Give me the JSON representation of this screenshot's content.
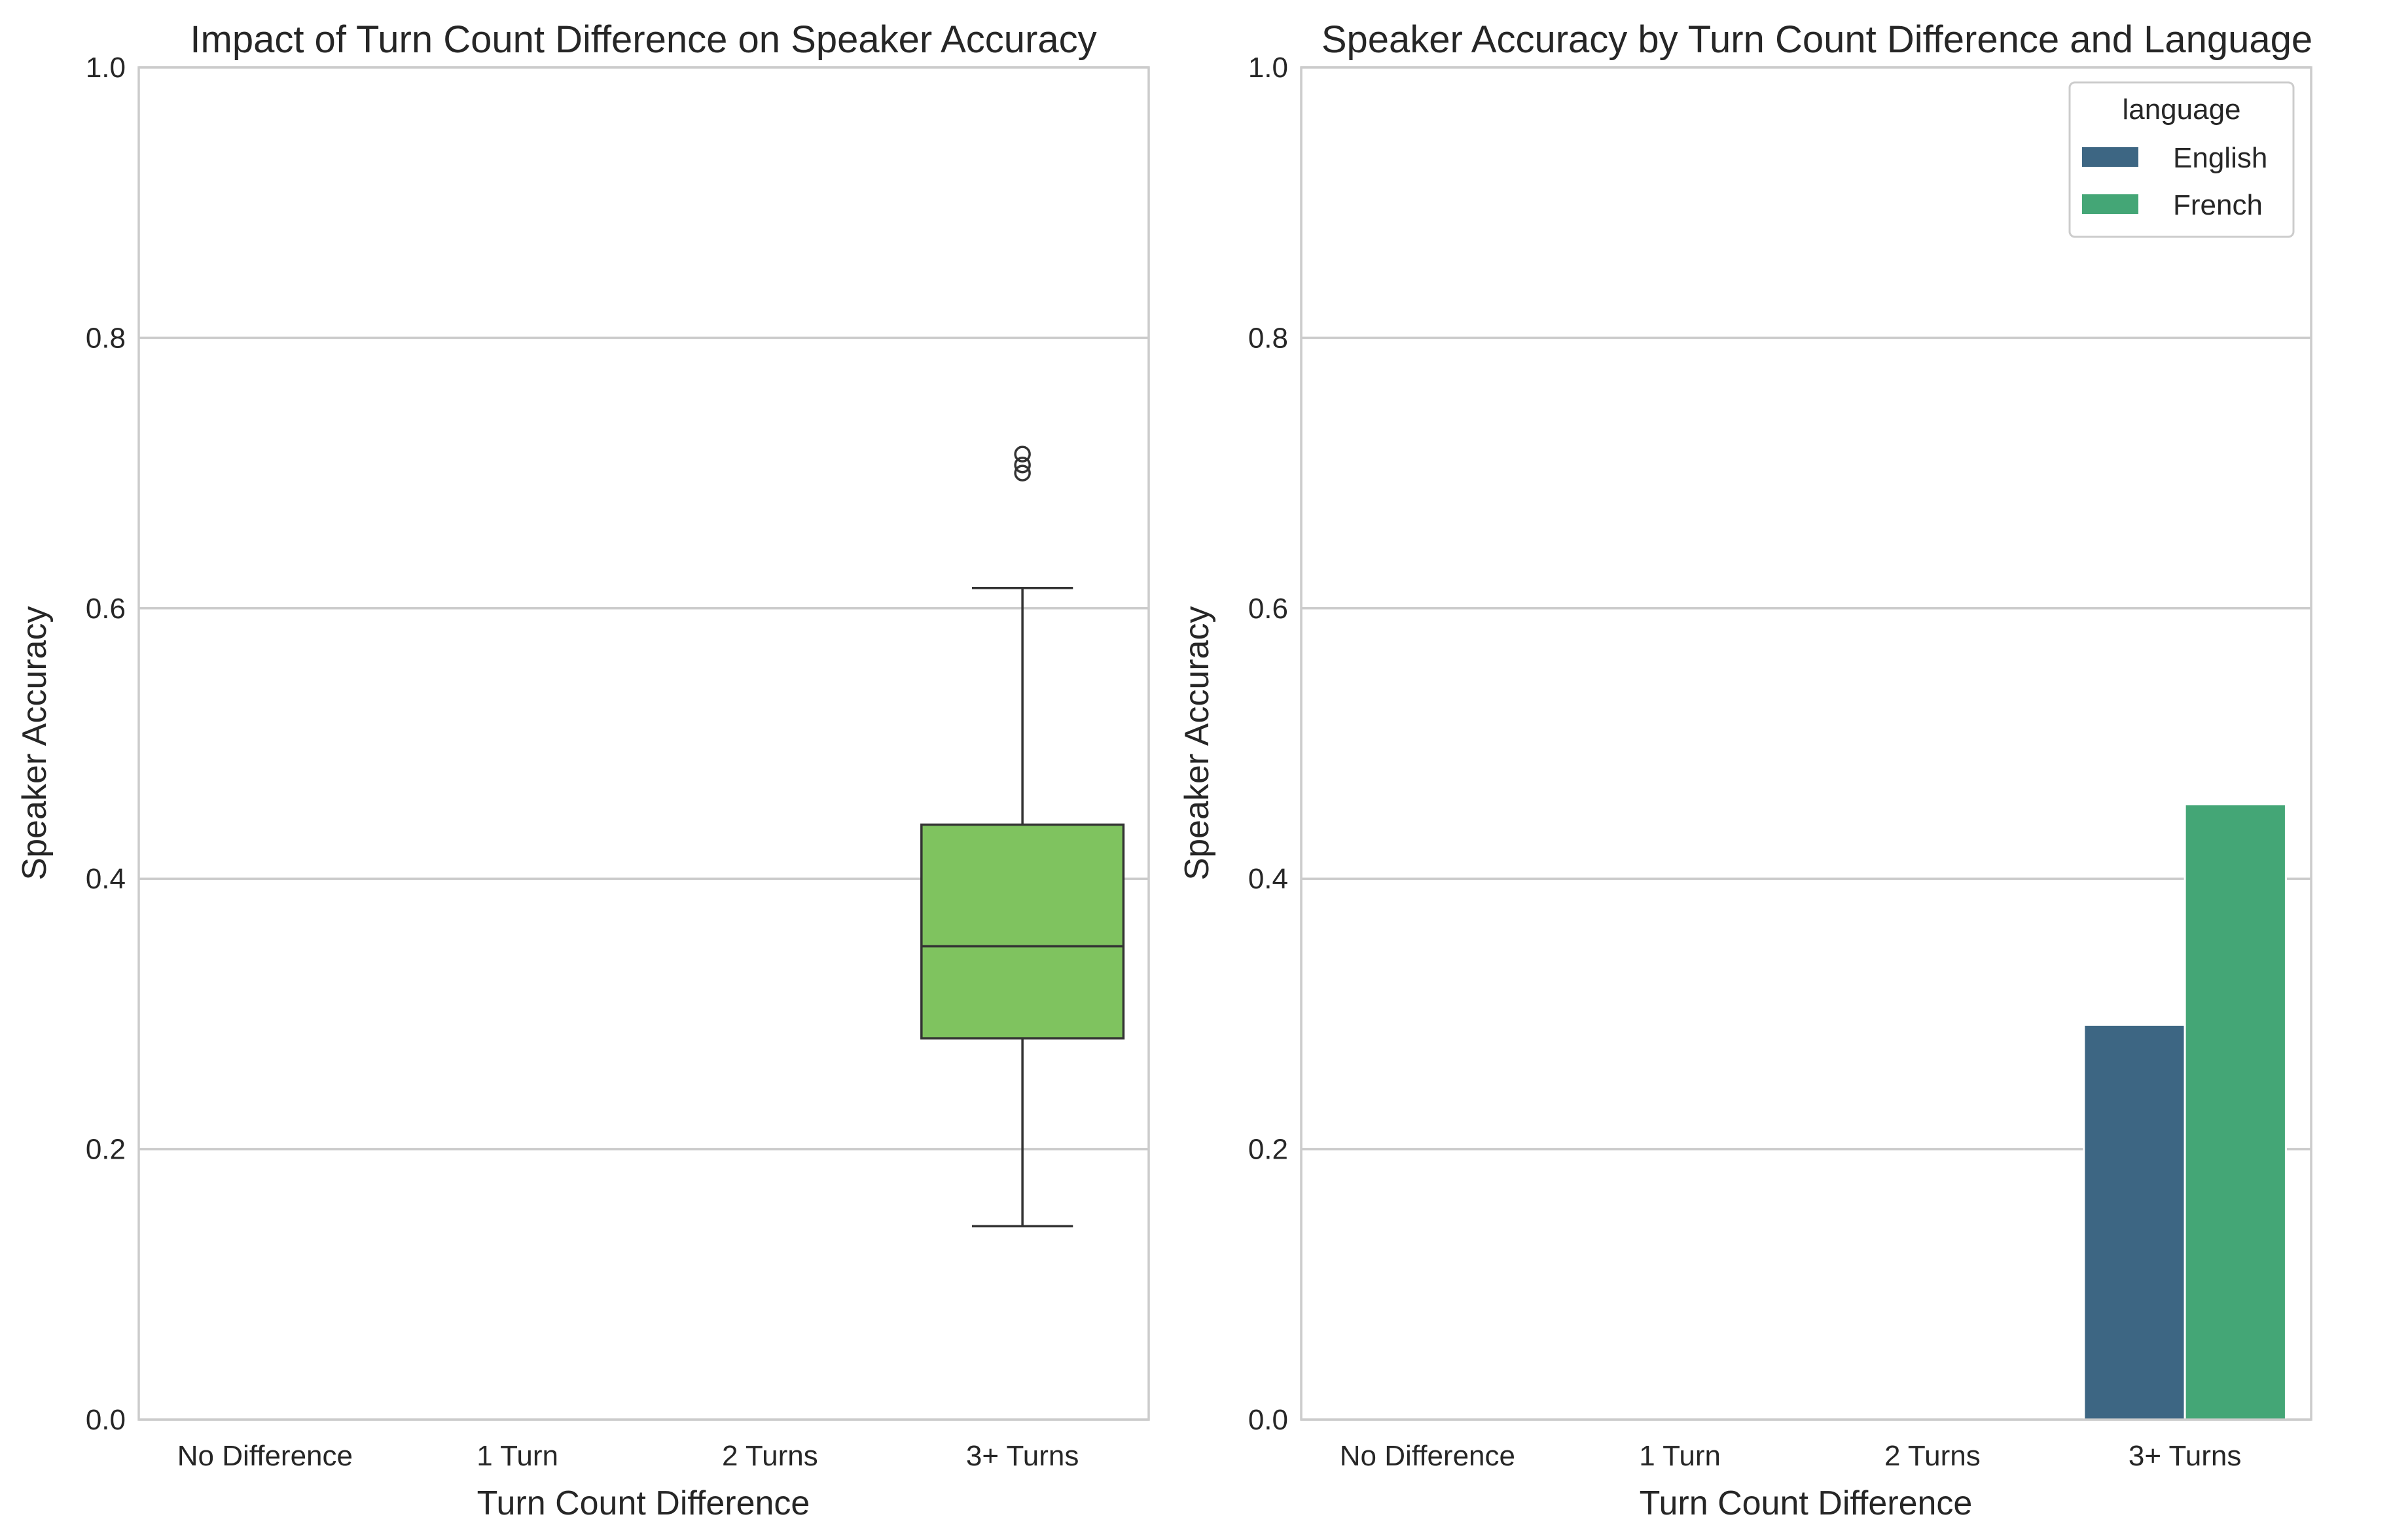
{
  "chart_data": [
    {
      "type": "box",
      "title": "Impact of Turn Count Difference on Speaker Accuracy",
      "xlabel": "Turn Count Difference",
      "ylabel": "Speaker Accuracy",
      "ylim": [
        0,
        1
      ],
      "yticks": [
        "0.0",
        "0.2",
        "0.4",
        "0.6",
        "0.8",
        "1.0"
      ],
      "grid": "y",
      "categories": [
        "No Difference",
        "1 Turn",
        "2 Turns",
        "3+ Turns"
      ],
      "boxes": [
        {
          "category": "3+ Turns",
          "whisker_low": 0.143,
          "q1": 0.282,
          "median": 0.35,
          "q3": 0.44,
          "whisker_high": 0.615,
          "outliers": [
            0.7,
            0.706,
            0.714
          ]
        }
      ],
      "color": "#7fc35f"
    },
    {
      "type": "bar",
      "title": "Speaker Accuracy by Turn Count Difference and Language",
      "xlabel": "Turn Count Difference",
      "ylabel": "Speaker Accuracy",
      "ylim": [
        0,
        1
      ],
      "yticks": [
        "0.0",
        "0.2",
        "0.4",
        "0.6",
        "0.8",
        "1.0"
      ],
      "grid": "y",
      "categories": [
        "No Difference",
        "1 Turn",
        "2 Turns",
        "3+ Turns"
      ],
      "legend": {
        "title": "language",
        "placement": "top-right"
      },
      "series": [
        {
          "name": "English",
          "color": "#3d6683",
          "values": [
            null,
            null,
            null,
            0.292
          ]
        },
        {
          "name": "French",
          "color": "#44a676",
          "values": [
            null,
            null,
            null,
            0.455
          ]
        }
      ]
    }
  ]
}
